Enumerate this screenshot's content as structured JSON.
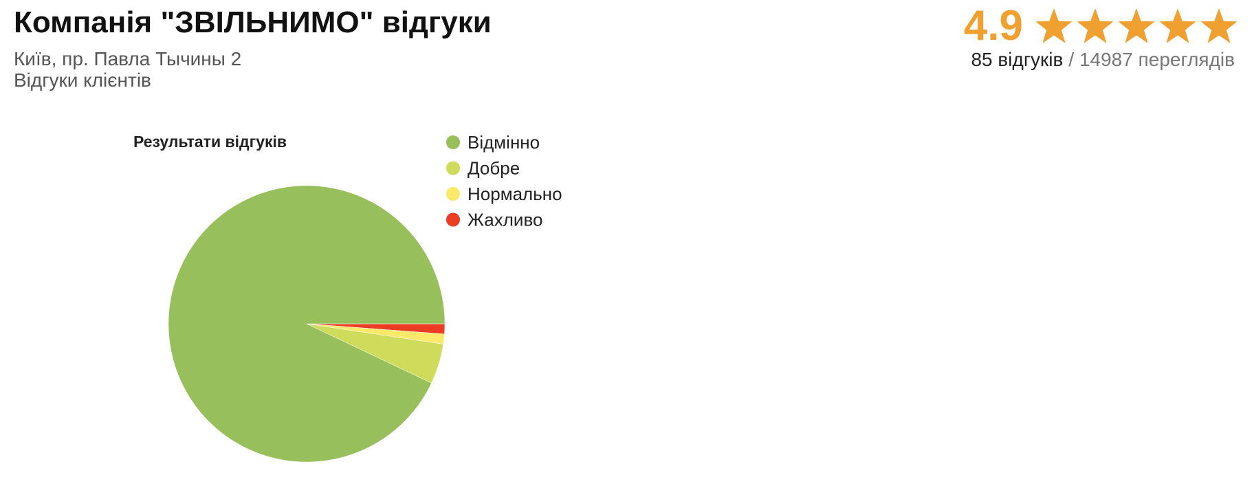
{
  "header": {
    "title": "Компанія \"ЗВІЛЬНИМО\" відгуки",
    "address": "Київ, пр. Павла Тычины 2",
    "subtitle": "Відгуки клієнтів",
    "rating": "4.9",
    "reviews": "85 відгуків",
    "views": "/ 14987 переглядів"
  },
  "chart_data": {
    "type": "pie",
    "title": "Результати відгуків",
    "categories": [
      "Відмінно",
      "Добре",
      "Нормально",
      "Жахливо"
    ],
    "values": [
      79,
      4,
      1,
      1
    ],
    "colors": [
      "#97bf5c",
      "#cfdb5a",
      "#fbe96a",
      "#eb3c24"
    ]
  }
}
